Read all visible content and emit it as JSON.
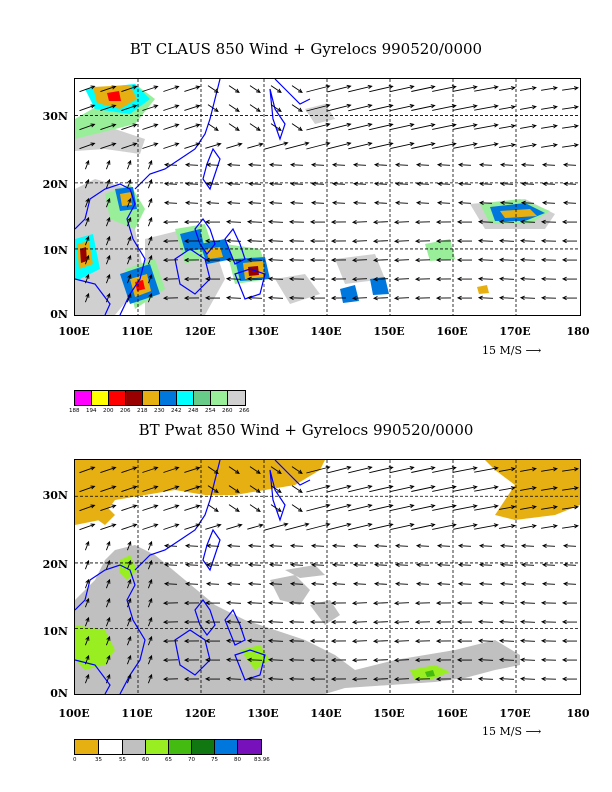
{
  "panels": [
    {
      "title": "BT CLAUS 850 Wind + Gyrelocs 990520/0000",
      "lat_labels": [
        "30N",
        "20N",
        "10N",
        "0N"
      ],
      "lon_labels": [
        "100E",
        "110E",
        "120E",
        "130E",
        "140E",
        "150E",
        "160E",
        "170E",
        "180"
      ],
      "reference_vector": "15 M/S",
      "field": "cloud-top brightness temperature",
      "legend_labels": [
        "188",
        "194",
        "200",
        "206",
        "218",
        "230",
        "242",
        "248",
        "254",
        "260",
        "266"
      ],
      "legend_colors": [
        "#ff00ff",
        "#ffff00",
        "#ff0000",
        "#990000",
        "#e6b012",
        "#0077dd",
        "#00ffff",
        "#66cc88",
        "#99ee99",
        "#d0d0d0"
      ]
    },
    {
      "title": "BT Pwat 850 Wind + Gyrelocs 990520/0000",
      "lat_labels": [
        "30N",
        "20N",
        "10N",
        "0N"
      ],
      "lon_labels": [
        "100E",
        "110E",
        "120E",
        "130E",
        "140E",
        "150E",
        "160E",
        "170E",
        "180"
      ],
      "reference_vector": "15 M/S",
      "field": "precipitable water",
      "legend_labels": [
        "0",
        "35",
        "55",
        "60",
        "65",
        "70",
        "75",
        "80",
        "83.96"
      ],
      "legend_colors": [
        "#e6b012",
        "#ffffff",
        "#c0c0c0",
        "#99ee22",
        "#44bb11",
        "#117711",
        "#0077dd",
        "#7711bb"
      ]
    }
  ],
  "colors": {
    "coast": "#0000ff",
    "grid": "#000000",
    "vector": "#000000"
  }
}
